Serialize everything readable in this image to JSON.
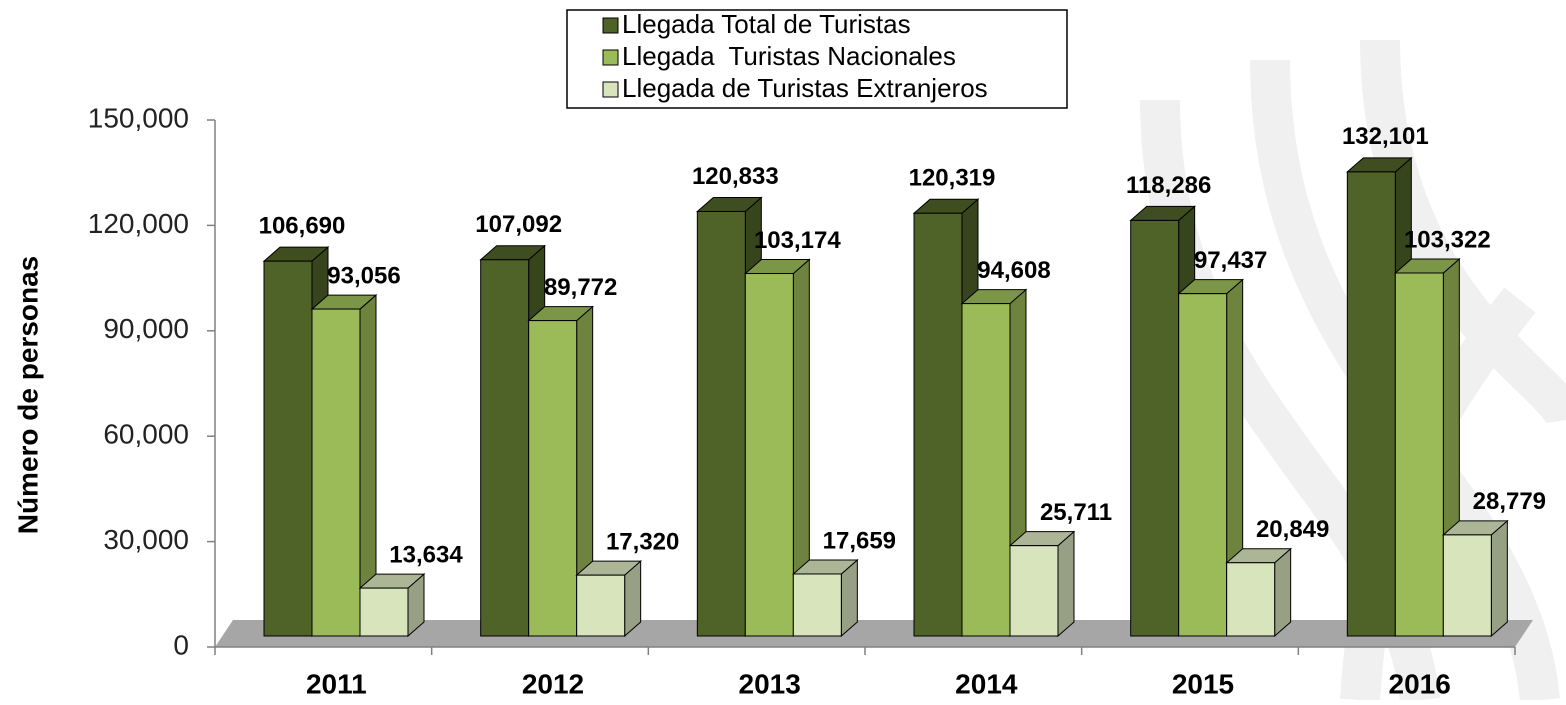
{
  "chart_data": {
    "type": "bar3d",
    "y_label": "Número de personas",
    "categories": [
      "2011",
      "2012",
      "2013",
      "2014",
      "2015",
      "2016"
    ],
    "series": [
      {
        "name": "Llegada Total de Turistas",
        "color": "#4f6228",
        "values": [
          106690,
          107092,
          120833,
          120319,
          118286,
          132101
        ],
        "value_labels": [
          "106,690",
          "107,092",
          "120,833",
          "120,319",
          "118,286",
          "132,101"
        ]
      },
      {
        "name": "Llegada  Turistas Nacionales",
        "color": "#9bbb59",
        "values": [
          93056,
          89772,
          103174,
          94608,
          97437,
          103322
        ],
        "value_labels": [
          "93,056",
          "89,772",
          "103,174",
          "94,608",
          "97,437",
          "103,322"
        ]
      },
      {
        "name": "Llegada de Turistas Extranjeros",
        "color": "#d7e4bc",
        "values": [
          13634,
          17320,
          17659,
          25711,
          20849,
          28779
        ],
        "value_labels": [
          "13,634",
          "17,320",
          "17,659",
          "25,711",
          "20,849",
          "28,779"
        ]
      }
    ],
    "ylim": [
      0,
      150000
    ],
    "yticks": [
      0,
      {
        "value": 30000,
        "label": "30,000"
      },
      {
        "value": 60000,
        "label": "60,000"
      },
      {
        "value": 90000,
        "label": "90,000"
      },
      {
        "value": 120000,
        "label": "120,000"
      },
      {
        "value": 150000,
        "label": "150,000"
      }
    ],
    "legend": "top"
  }
}
